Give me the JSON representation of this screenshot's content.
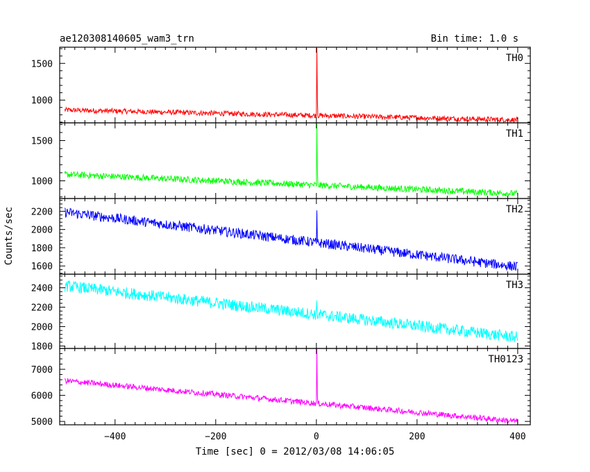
{
  "header": {
    "title": "ae120308140605_wam3_trn",
    "bin_time": "Bin time: 1.0 s"
  },
  "chart_data": {
    "type": "line",
    "title": "ae120308140605_wam3_trn",
    "subtitle": "Bin time: 1.0 s",
    "xlabel": "Time [sec] 0 = 2012/03/08 14:06:05",
    "ylabel": "Counts/sec",
    "xlim": [
      -510,
      425
    ],
    "xticks": [
      -400,
      -200,
      0,
      200,
      400
    ],
    "bin_time_s": 1.0,
    "grid": false,
    "legend": "none",
    "panels": [
      {
        "name": "TH0",
        "color": "#ff0000",
        "ylim": [
          690,
          1720
        ],
        "yticks": [
          1000,
          1500
        ],
        "trend": {
          "x": [
            -500,
            400
          ],
          "y": [
            865,
            730
          ]
        },
        "noise_amplitude": 35,
        "spike": {
          "x": 1,
          "peak": 1720
        }
      },
      {
        "name": "TH1",
        "color": "#00ff00",
        "ylim": [
          780,
          1720
        ],
        "yticks": [
          1000,
          1500
        ],
        "trend": {
          "x": [
            -500,
            400
          ],
          "y": [
            1080,
            840
          ]
        },
        "noise_amplitude": 40,
        "spike": {
          "x": 1,
          "peak": 1720
        }
      },
      {
        "name": "TH2",
        "color": "#0000ff",
        "ylim": [
          1510,
          2340
        ],
        "yticks": [
          1600,
          1800,
          2000,
          2200
        ],
        "trend": {
          "x": [
            -500,
            400
          ],
          "y": [
            2190,
            1590
          ]
        },
        "noise_amplitude": 55,
        "spike": {
          "x": 1,
          "peak": 2210
        }
      },
      {
        "name": "TH3",
        "color": "#00ffff",
        "ylim": [
          1775,
          2540
        ],
        "yticks": [
          1800,
          2000,
          2200,
          2400
        ],
        "trend": {
          "x": [
            -500,
            400
          ],
          "y": [
            2420,
            1890
          ]
        },
        "noise_amplitude": 60,
        "spike": {
          "x": 1,
          "peak": 2270
        }
      },
      {
        "name": "TH0123",
        "color": "#ff00ff",
        "ylim": [
          4870,
          7800
        ],
        "yticks": [
          5000,
          6000,
          7000
        ],
        "trend": {
          "x": [
            -500,
            400
          ],
          "y": [
            6560,
            5000
          ]
        },
        "noise_amplitude": 110,
        "spike": {
          "x": 1,
          "peak": 7800
        }
      }
    ]
  }
}
